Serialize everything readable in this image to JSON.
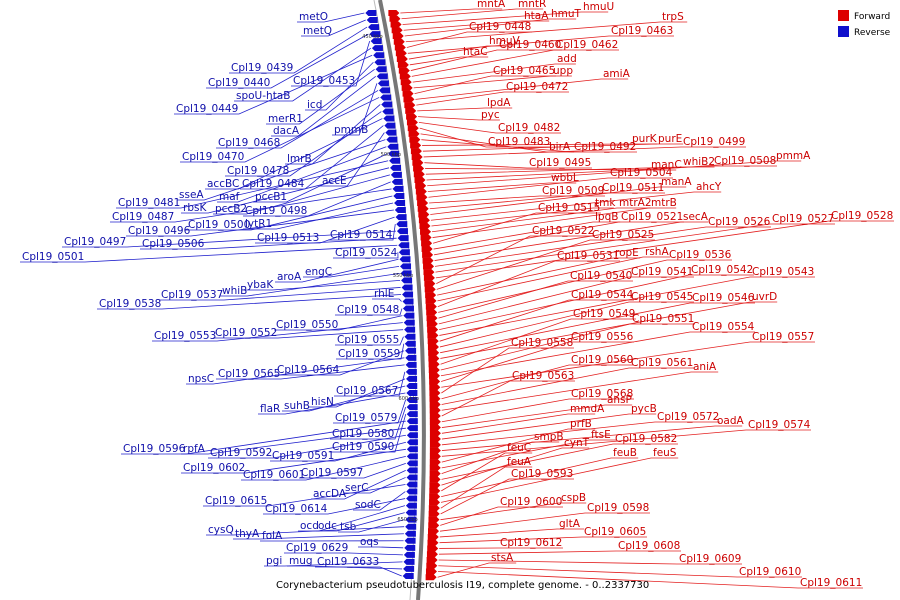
{
  "caption": "Corynebacterium pseudotuberculosis I19, complete genome. - 0..2337730",
  "legend": [
    {
      "label": "Forward",
      "color": "#dd0000"
    },
    {
      "label": "Reverse",
      "color": "#1010cc"
    }
  ],
  "scale_ticks": [
    "450 kbp",
    "500 kbp",
    "550 kbp",
    "600 kbp",
    "650 kbp"
  ],
  "forward_labels": [
    "mntA",
    "mntR",
    "hmuU",
    "htaA",
    "hmuT",
    "trpS",
    "Cpl19_0448",
    "Cpl19_0463",
    "hmuV",
    "htaC",
    "Cpl19_0460",
    "Cpl19_0462",
    "add",
    "upp",
    "Cpl19_0465",
    "amiA",
    "Cpl19_0472",
    "lpdA",
    "pyc",
    "Cpl19_0482",
    "Cpl19_0483",
    "birA",
    "Cpl19_0492",
    "purK",
    "purE",
    "Cpl19_0499",
    "Cpl19_0495",
    "manC",
    "whiB2",
    "Cpl19_0508",
    "pmmA",
    "wbbL",
    "Cpl19_0504",
    "Cpl19_0509",
    "Cpl19_0511",
    "manA",
    "ahcY",
    "tmk",
    "mtrA2",
    "mtrB",
    "Cpl19_0515",
    "lpqB",
    "Cpl19_0521",
    "secA",
    "Cpl19_0526",
    "Cpl19_0527",
    "Cpl19_0528",
    "Cpl19_0522",
    "Cpl19_0525",
    "ropE",
    "rshA",
    "Cpl19_0531",
    "Cpl19_0536",
    "Cpl19_0540",
    "Cpl19_0541",
    "Cpl19_0542",
    "Cpl19_0543",
    "Cpl19_0544",
    "Cpl19_0545",
    "Cpl19_0546",
    "uvrD",
    "Cpl19_0549",
    "Cpl19_0551",
    "Cpl19_0554",
    "Cpl19_0556",
    "Cpl19_0557",
    "Cpl19_0558",
    "Cpl19_0560",
    "Cpl19_0561",
    "aniA",
    "Cpl19_0563",
    "Cpl19_0568",
    "ansP",
    "mmdA",
    "pycB",
    "Cpl19_0572",
    "oadA",
    "Cpl19_0574",
    "prfB",
    "ftsE",
    "smpB",
    "Cpl19_0582",
    "cynT",
    "feuC",
    "feuB",
    "feuS",
    "feuA",
    "Cpl19_0593",
    "cspB",
    "Cpl19_0600",
    "Cpl19_0598",
    "gltA",
    "Cpl19_0605",
    "Cpl19_0612",
    "Cpl19_0608",
    "Cpl19_0609",
    "Cpl19_0610",
    "Cpl19_0611",
    "stsA"
  ],
  "reverse_labels": [
    "metO",
    "metQ",
    "Cpl19_0439",
    "Cpl19_0440",
    "Cpl19_0453",
    "spoU-htaB",
    "Cpl19_0449",
    "icd",
    "merR1",
    "dacA",
    "pmmB",
    "Cpl19_0468",
    "Cpl19_0470",
    "lmrB",
    "Cpl19_0478",
    "accBC",
    "Cpl19_0484",
    "accE",
    "sseA",
    "maf",
    "pccB1",
    "Cpl19_0481",
    "rbsK",
    "pccB2",
    "Cpl19_0498",
    "Cpl19_0487",
    "Cpl19_0500",
    "lytR1",
    "Cpl19_0496",
    "Cpl19_0513",
    "Cpl19_0514",
    "Cpl19_0497",
    "Cpl19_0506",
    "Cpl19_0501",
    "Cpl19_0524",
    "aroA",
    "engC",
    "whiB",
    "ybaK",
    "Cpl19_0537",
    "Cpl19_0538",
    "rhlE",
    "Cpl19_0548",
    "Cpl19_0550",
    "Cpl19_0553",
    "Cpl19_0552",
    "Cpl19_0555",
    "Cpl19_0559",
    "Cpl19_0564",
    "npsC",
    "Cpl19_0565",
    "Cpl19_0567",
    "hisN",
    "suhB",
    "flaR",
    "Cpl19_0579",
    "Cpl19_0580",
    "Cpl19_0590",
    "Cpl19_0596",
    "rpfA",
    "Cpl19_0592",
    "Cpl19_0591",
    "Cpl19_0602",
    "Cpl19_0601",
    "Cpl19_0597",
    "accDA",
    "serC",
    "Cpl19_0615",
    "sodC",
    "Cpl19_0614",
    "ocd",
    "odc",
    "tsb",
    "cysQ",
    "thyA",
    "folA",
    "oqs",
    "Cpl19_0629",
    "pgi",
    "mug",
    "Cpl19_0633"
  ]
}
